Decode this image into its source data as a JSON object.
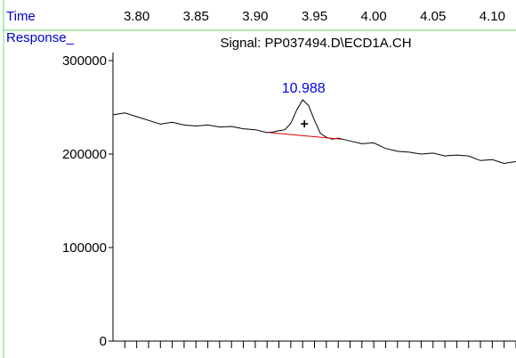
{
  "colors": {
    "axis_label": "#0000cc",
    "frame": "#66dd66",
    "signal": "#000000",
    "baseline": "#e00000",
    "peak_label": "#0000ee",
    "text": "#000000"
  },
  "chart_data": {
    "type": "line",
    "time_label": "Time",
    "response_label": "Response_",
    "signal_title": "Signal: PP037494.D\\ECD1A.CH",
    "time_ticks": [
      "3.80",
      "3.85",
      "3.90",
      "3.95",
      "4.00",
      "4.05",
      "4.10"
    ],
    "time_tick_values": [
      3.8,
      3.85,
      3.9,
      3.95,
      4.0,
      4.05,
      4.1
    ],
    "y_ticks": [
      "300000",
      "200000",
      "100000",
      "0"
    ],
    "y_tick_values": [
      300000,
      200000,
      100000,
      0
    ],
    "xlim": [
      3.78,
      4.12
    ],
    "ylim": [
      0,
      300000
    ],
    "series": [
      {
        "x": [
          3.78,
          3.79,
          3.8,
          3.81,
          3.82,
          3.83,
          3.84,
          3.85,
          3.86,
          3.87,
          3.88,
          3.89,
          3.9,
          3.91,
          3.915,
          3.92,
          3.925,
          3.93,
          3.935,
          3.94,
          3.945,
          3.95,
          3.955,
          3.96,
          3.965,
          3.97,
          3.975,
          3.98,
          3.99,
          4.0,
          4.01,
          4.02,
          4.03,
          4.04,
          4.05,
          4.06,
          4.07,
          4.08,
          4.09,
          4.1,
          4.11,
          4.12
        ],
        "y": [
          242000,
          244000,
          240000,
          236000,
          232000,
          234000,
          231000,
          230000,
          231000,
          229000,
          229500,
          227000,
          226000,
          223000,
          223500,
          225000,
          226000,
          233000,
          247000,
          258000,
          252000,
          236000,
          222000,
          218000,
          216000,
          217000,
          215500,
          214000,
          211000,
          212000,
          206000,
          203000,
          202000,
          200000,
          201000,
          198000,
          199000,
          198000,
          193000,
          194000,
          190000,
          192000
        ]
      }
    ],
    "peak": {
      "label": "10.988",
      "apex_time": 3.94,
      "apex_response": 258000,
      "baseline_start": [
        3.912,
        223000
      ],
      "baseline_end": [
        3.972,
        216000
      ]
    },
    "grid": false
  }
}
